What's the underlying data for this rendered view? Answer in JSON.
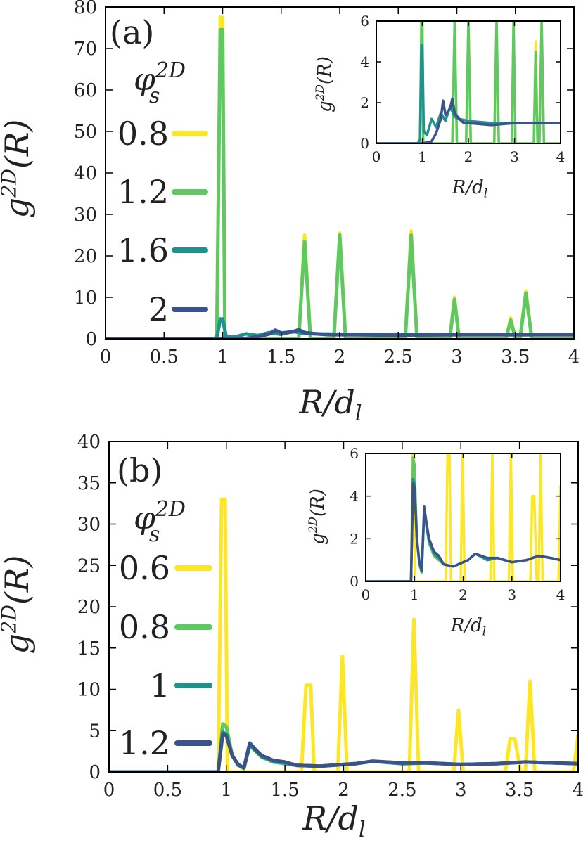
{
  "chart_data": [
    {
      "type": "line",
      "panel_label": "(a)",
      "xlabel": "R/d_l",
      "ylabel": "g^{2D}(R)",
      "xlim": [
        0,
        4
      ],
      "ylim": [
        0,
        80
      ],
      "xticks": [
        "0",
        "0.5",
        "1",
        "1.5",
        "2",
        "2.5",
        "3",
        "3.5",
        "4"
      ],
      "yticks": [
        "0",
        "10",
        "20",
        "30",
        "40",
        "50",
        "60",
        "70",
        "80"
      ],
      "legend_title": "phi_s^{2D}",
      "legend_position": "left",
      "series": [
        {
          "name": "0.8",
          "color": "#fde725",
          "x": [
            0,
            0.9,
            0.95,
            0.98,
            1.0,
            1.02,
            1.05,
            1.65,
            1.7,
            1.75,
            1.95,
            2.0,
            2.05,
            2.56,
            2.61,
            2.66,
            2.94,
            2.98,
            3.02,
            3.42,
            3.46,
            3.5,
            3.54,
            3.59,
            3.64,
            4.0
          ],
          "y": [
            0,
            0,
            0,
            77.5,
            77.5,
            0,
            0,
            0,
            25,
            0,
            0,
            25.5,
            0,
            0,
            26,
            0,
            0,
            10,
            0,
            0,
            5,
            0,
            0,
            11.5,
            0,
            0
          ]
        },
        {
          "name": "1.2",
          "color": "#5ec962",
          "x": [
            0,
            0.9,
            0.95,
            0.98,
            1.0,
            1.02,
            1.05,
            1.65,
            1.7,
            1.75,
            1.95,
            2.0,
            2.05,
            2.56,
            2.61,
            2.66,
            2.94,
            2.98,
            3.02,
            3.42,
            3.46,
            3.5,
            3.54,
            3.59,
            3.64,
            4.0
          ],
          "y": [
            0,
            0,
            0,
            74.5,
            74.5,
            0,
            0,
            0,
            23.5,
            0,
            0,
            25,
            0,
            0,
            25,
            0,
            0,
            9.5,
            0,
            0,
            4.5,
            0,
            0,
            11,
            0,
            0
          ]
        },
        {
          "name": "1.6",
          "color": "#21918c",
          "x": [
            0,
            0.9,
            0.95,
            0.98,
            1.0,
            1.03,
            1.1,
            1.2,
            1.25,
            1.3,
            1.4,
            1.5,
            1.6,
            1.7,
            1.8,
            2.0,
            2.5,
            3.0,
            3.5,
            4.0
          ],
          "y": [
            0,
            0,
            0.2,
            4.8,
            4.8,
            0.6,
            0.4,
            1.2,
            1.0,
            0.8,
            1.5,
            1.1,
            1.8,
            1.3,
            1.2,
            1.1,
            1.0,
            1.0,
            1.0,
            1.0
          ]
        },
        {
          "name": "2",
          "color": "#3b528b",
          "x": [
            0,
            1.0,
            1.2,
            1.3,
            1.4,
            1.45,
            1.5,
            1.6,
            1.65,
            1.7,
            1.8,
            1.9,
            2.0,
            2.5,
            3.0,
            3.5,
            4.0
          ],
          "y": [
            0,
            0,
            0.1,
            0.5,
            1.2,
            2.1,
            1.4,
            1.7,
            2.2,
            1.5,
            1.2,
            1.0,
            1.0,
            0.9,
            1.0,
            1.0,
            1.0
          ]
        }
      ],
      "inset": {
        "xlabel": "R/d_l",
        "ylabel": "g^{2D}(R)",
        "xlim": [
          0,
          4
        ],
        "ylim": [
          0,
          6
        ],
        "xticks": [
          "0",
          "1",
          "2",
          "3",
          "4"
        ],
        "yticks": [
          "0",
          "2",
          "4",
          "6"
        ]
      }
    },
    {
      "type": "line",
      "panel_label": "(b)",
      "xlabel": "R/d_l",
      "ylabel": "g^{2D}(R)",
      "xlim": [
        0,
        4
      ],
      "ylim": [
        0,
        40
      ],
      "xticks": [
        "0",
        "0.5",
        "1",
        "1.5",
        "2",
        "2.5",
        "3",
        "3.5",
        "4"
      ],
      "yticks": [
        "0",
        "5",
        "10",
        "15",
        "20",
        "25",
        "30",
        "35",
        "40"
      ],
      "legend_title": "phi_s^{2D}",
      "legend_position": "left",
      "series": [
        {
          "name": "0.6",
          "color": "#fde725",
          "x": [
            0,
            0.93,
            0.96,
            0.99,
            1.01,
            1.04,
            1.64,
            1.68,
            1.72,
            1.75,
            1.95,
            1.99,
            2.03,
            2.56,
            2.6,
            2.64,
            2.94,
            2.98,
            3.02,
            3.38,
            3.42,
            3.46,
            3.51,
            3.55,
            3.59,
            3.63,
            3.96,
            4.0
          ],
          "y": [
            0,
            0,
            33,
            33,
            0,
            0,
            0,
            10.5,
            10.5,
            0,
            0,
            14,
            0,
            0,
            18.5,
            0,
            0,
            7.5,
            0,
            0,
            4,
            4,
            0,
            0,
            11,
            0,
            0,
            4.5
          ]
        },
        {
          "name": "0.8",
          "color": "#5ec962",
          "x": [
            0,
            0.93,
            0.97,
            1.0,
            1.05,
            1.1,
            1.15,
            1.2,
            1.25,
            1.3,
            1.4,
            1.5,
            1.6,
            1.8,
            2.0,
            2.1,
            2.25,
            2.5,
            2.7,
            3.0,
            3.3,
            3.55,
            3.8,
            4.0
          ],
          "y": [
            0,
            0,
            5.8,
            5.5,
            2.0,
            0.8,
            0.4,
            3.2,
            2.5,
            1.8,
            1.2,
            1.0,
            0.8,
            0.7,
            0.9,
            1.0,
            1.3,
            1.0,
            1.1,
            0.9,
            1.0,
            1.2,
            1.1,
            1.0
          ]
        },
        {
          "name": "1",
          "color": "#21918c",
          "x": [
            0,
            0.93,
            0.97,
            1.0,
            1.05,
            1.1,
            1.15,
            1.2,
            1.25,
            1.3,
            1.4,
            1.5,
            1.6,
            1.8,
            2.0,
            2.1,
            2.25,
            2.5,
            2.7,
            3.0,
            3.3,
            3.55,
            3.8,
            4.0
          ],
          "y": [
            0,
            0,
            4.8,
            4.6,
            2.0,
            0.9,
            0.5,
            3.3,
            2.6,
            1.9,
            1.3,
            1.1,
            0.8,
            0.7,
            0.9,
            1.0,
            1.3,
            1.0,
            1.1,
            0.9,
            1.0,
            1.2,
            1.1,
            1.0
          ]
        },
        {
          "name": "1.2",
          "color": "#3b528b",
          "x": [
            0,
            0.93,
            0.97,
            1.0,
            1.05,
            1.1,
            1.15,
            1.2,
            1.25,
            1.3,
            1.4,
            1.5,
            1.6,
            1.8,
            2.0,
            2.1,
            2.25,
            2.5,
            2.7,
            3.0,
            3.3,
            3.55,
            3.8,
            4.0
          ],
          "y": [
            0,
            0,
            4.6,
            4.4,
            2.0,
            0.9,
            0.5,
            3.5,
            2.7,
            2.0,
            1.4,
            1.2,
            0.8,
            0.7,
            0.9,
            1.0,
            1.3,
            1.1,
            1.1,
            0.9,
            1.0,
            1.2,
            1.1,
            1.0
          ]
        }
      ],
      "inset": {
        "xlabel": "R/d_l",
        "ylabel": "g^{2D}(R)",
        "xlim": [
          0,
          4
        ],
        "ylim": [
          0,
          6
        ],
        "xticks": [
          "0",
          "1",
          "2",
          "3",
          "4"
        ],
        "yticks": [
          "0",
          "2",
          "4",
          "6"
        ]
      }
    }
  ]
}
